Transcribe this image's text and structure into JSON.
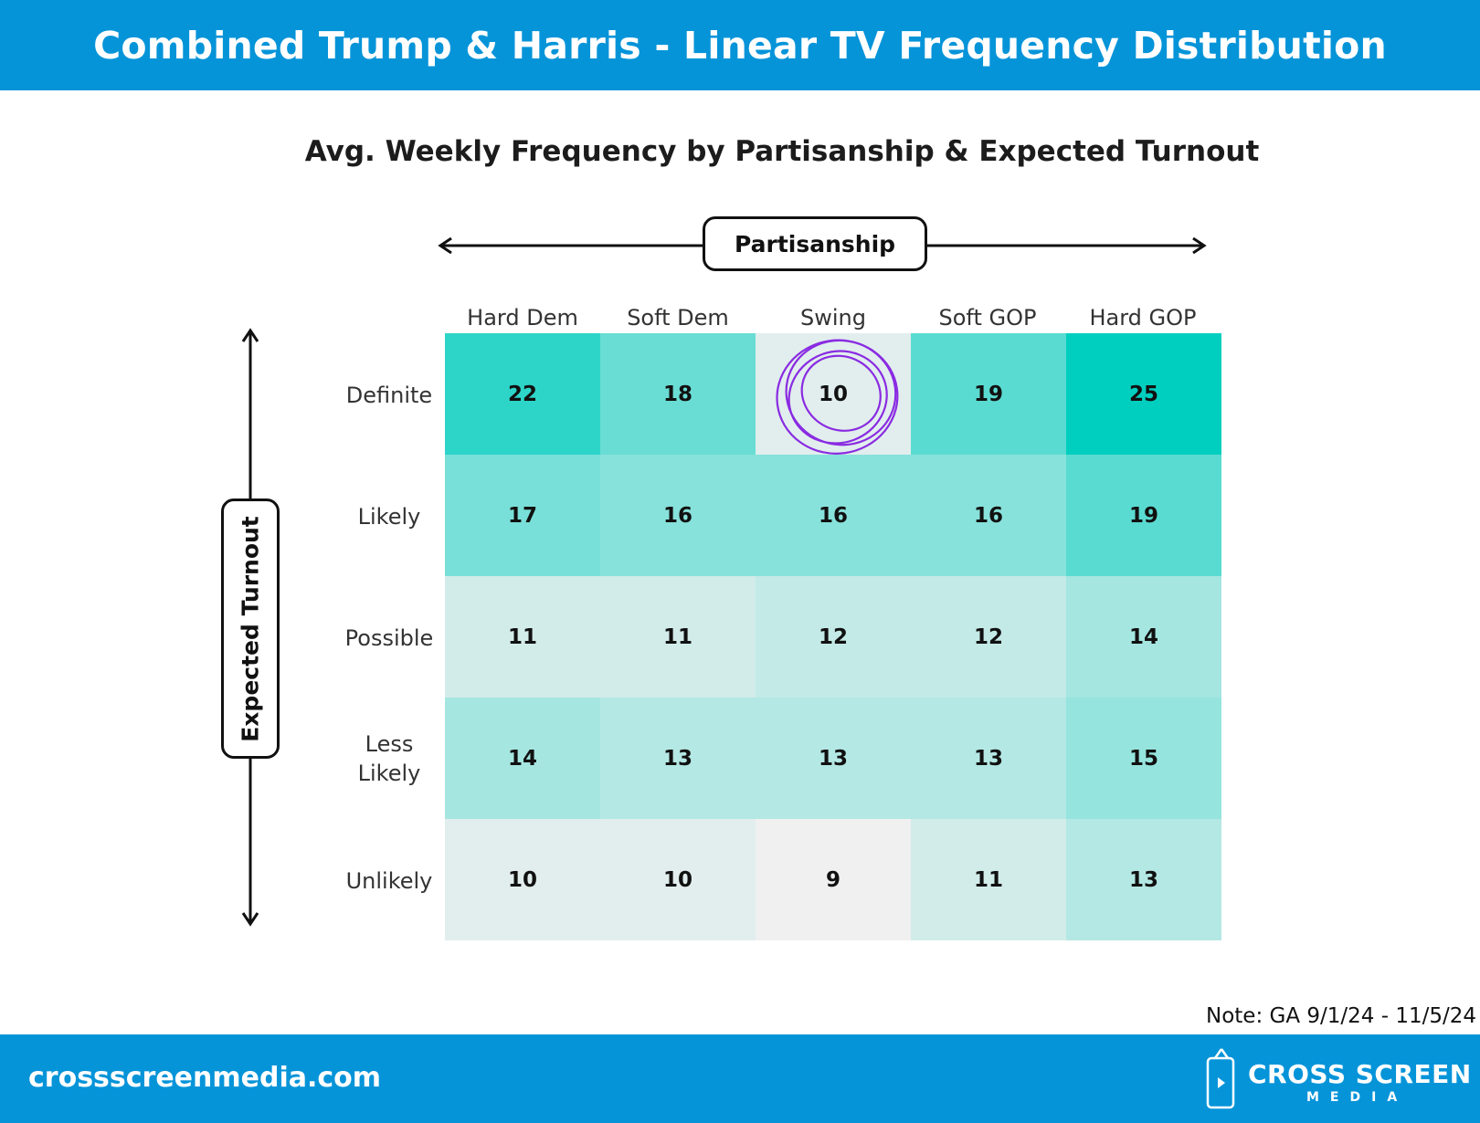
{
  "header": {
    "title": "Combined Trump & Harris - Linear TV Frequency Distribution"
  },
  "subtitle": "Avg. Weekly Frequency by Partisanship & Expected Turnout",
  "axes": {
    "x_label": "Partisanship",
    "y_label": "Expected Turnout"
  },
  "chart_data": {
    "type": "heatmap",
    "columns": [
      "Hard Dem",
      "Soft Dem",
      "Swing",
      "Soft GOP",
      "Hard GOP"
    ],
    "rows": [
      "Definite",
      "Likely",
      "Possible",
      "Less Likely",
      "Unlikely"
    ],
    "values": [
      [
        22,
        18,
        10,
        19,
        25
      ],
      [
        17,
        16,
        16,
        16,
        19
      ],
      [
        11,
        11,
        12,
        12,
        14
      ],
      [
        14,
        13,
        13,
        13,
        15
      ],
      [
        10,
        10,
        9,
        11,
        13
      ]
    ],
    "color_low": "#f0f0f0",
    "color_high": "#00cfbf",
    "highlight": {
      "row": "Definite",
      "column": "Swing",
      "color": "#8a2be2"
    }
  },
  "note": "Note: GA 9/1/24 - 11/5/24",
  "footer": {
    "site": "crossscreenmedia.com",
    "brand": "CROSS SCREEN",
    "brand_sub": "MEDIA"
  }
}
